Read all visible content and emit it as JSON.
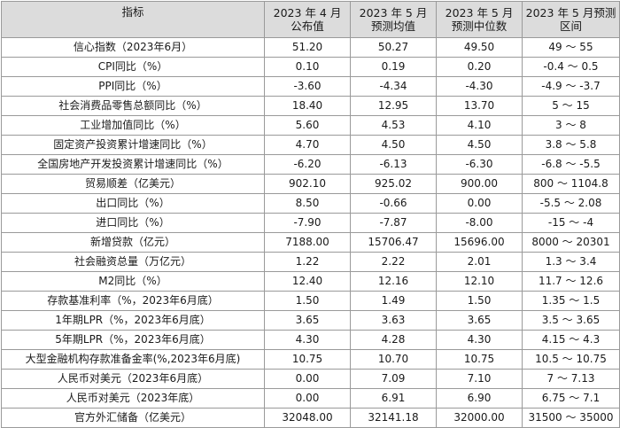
{
  "header": {
    "col0": "指标",
    "col1_line1": "2023 年 4 月",
    "col1_line2": "公布值",
    "col2_line1": "2023 年 5 月",
    "col2_line2": "预测均值",
    "col3_line1": "2023 年 5 月",
    "col3_line2": "预测中位数",
    "col4_line1": "2023 年 5 月预测",
    "col4_line2": "区间"
  },
  "rows": [
    {
      "label": "信心指数（2023年6月）",
      "apr": "51.20",
      "mean": "50.27",
      "median": "49.50",
      "range": "49 ～ 55"
    },
    {
      "label": "CPI同比（%）",
      "apr": "0.10",
      "mean": "0.19",
      "median": "0.20",
      "range": "-0.4 ～ 0.5"
    },
    {
      "label": "PPI同比（%）",
      "apr": "-3.60",
      "mean": "-4.34",
      "median": "-4.30",
      "range": "-4.9 ～ -3.7"
    },
    {
      "label": "社会消费品零售总额同比（%）",
      "apr": "18.40",
      "mean": "12.95",
      "median": "13.70",
      "range": "5 ～ 15"
    },
    {
      "label": "工业增加值同比（%）",
      "apr": "5.60",
      "mean": "4.53",
      "median": "4.10",
      "range": "3 ～ 8"
    },
    {
      "label": "固定资产投资累计增速同比（%）",
      "apr": "4.70",
      "mean": "4.50",
      "median": "4.50",
      "range": "3.8 ～ 5.8"
    },
    {
      "label": "全国房地产开发投资累计增速同比（%）",
      "apr": "-6.20",
      "mean": "-6.13",
      "median": "-6.30",
      "range": "-6.8 ～ -5.5"
    },
    {
      "label": "贸易顺差（亿美元）",
      "apr": "902.10",
      "mean": "925.02",
      "median": "900.00",
      "range": "800 ～ 1104.8"
    },
    {
      "label": "出口同比（%）",
      "apr": "8.50",
      "mean": "-0.66",
      "median": "0.00",
      "range": "-5.5 ～ 2.08"
    },
    {
      "label": "进口同比（%）",
      "apr": "-7.90",
      "mean": "-7.87",
      "median": "-8.00",
      "range": "-15 ～ -4"
    },
    {
      "label": "新增贷款（亿元）",
      "apr": "7188.00",
      "mean": "15706.47",
      "median": "15696.00",
      "range": "8000 ～ 20301"
    },
    {
      "label": "社会融资总量（万亿元）",
      "apr": "1.22",
      "mean": "2.22",
      "median": "2.01",
      "range": "1.3 ～ 3.4"
    },
    {
      "label": "M2同比（%）",
      "apr": "12.40",
      "mean": "12.16",
      "median": "12.10",
      "range": "11.7 ～ 12.6"
    },
    {
      "label": "存款基准利率（%，2023年6月底）",
      "apr": "1.50",
      "mean": "1.49",
      "median": "1.50",
      "range": "1.35 ～ 1.5"
    },
    {
      "label": "1年期LPR（%，2023年6月底）",
      "apr": "3.65",
      "mean": "3.63",
      "median": "3.65",
      "range": "3.5 ～ 3.65"
    },
    {
      "label": "5年期LPR（%，2023年6月底）",
      "apr": "4.30",
      "mean": "4.28",
      "median": "4.30",
      "range": "4.15 ～ 4.3"
    },
    {
      "label": "大型金融机构存款准备金率(%,2023年6月底)",
      "apr": "10.75",
      "mean": "10.70",
      "median": "10.75",
      "range": "10.5 ～ 10.75"
    },
    {
      "label": "人民币对美元（2023年6月底）",
      "apr": "0.00",
      "mean": "7.09",
      "median": "7.10",
      "range": "7 ～ 7.13"
    },
    {
      "label": "人民币对美元（2023年底）",
      "apr": "0.00",
      "mean": "6.91",
      "median": "6.90",
      "range": "6.75 ～ 7.1"
    },
    {
      "label": "官方外汇储备（亿美元）",
      "apr": "32048.00",
      "mean": "32141.18",
      "median": "32000.00",
      "range": "31500 ～ 35000"
    }
  ]
}
